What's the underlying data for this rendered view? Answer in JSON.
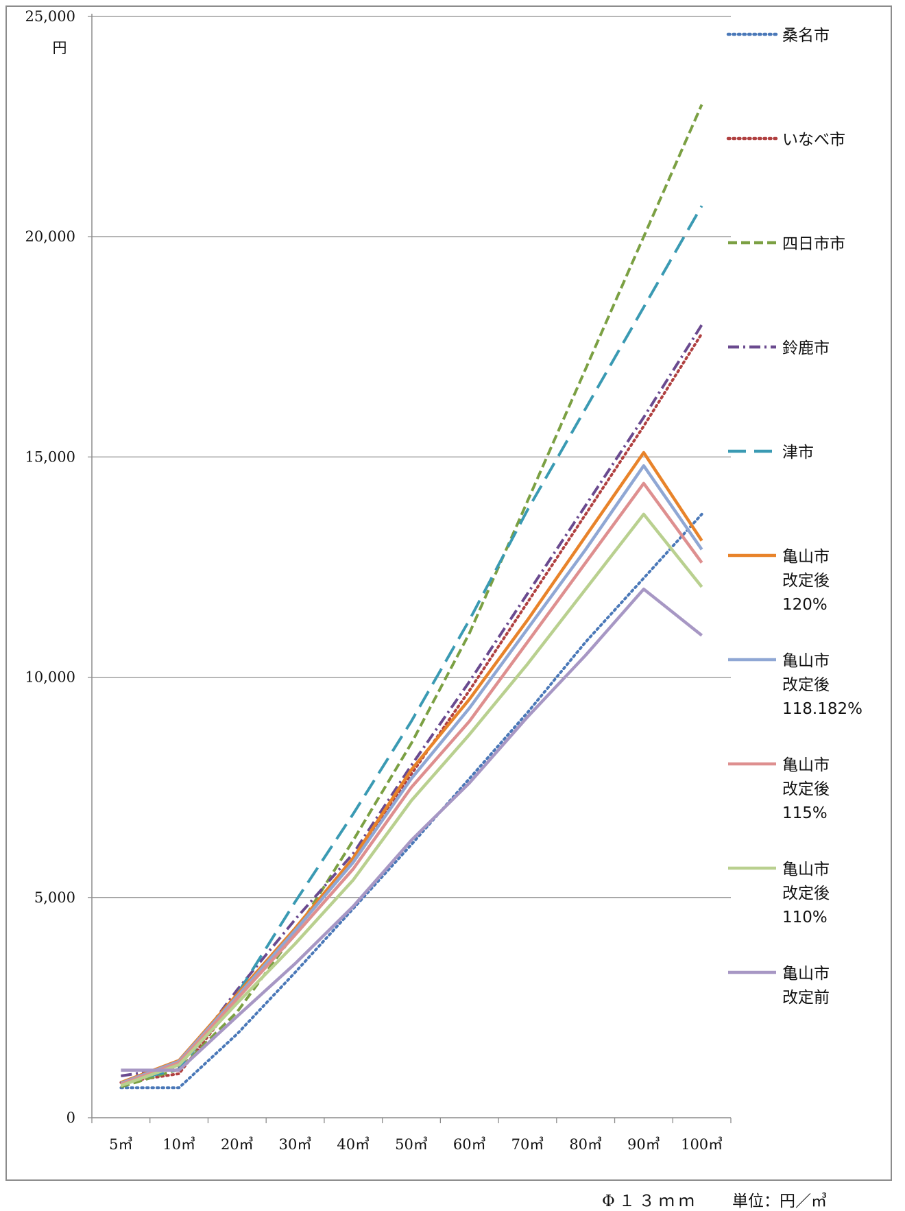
{
  "chart_data": {
    "type": "line",
    "title": "",
    "xlabel": "",
    "ylabel": "円",
    "ylim": [
      0,
      25000
    ],
    "y_ticks": [
      "0",
      "5,000",
      "10,000",
      "15,000",
      "20,000",
      "25,000"
    ],
    "y_tick_values": [
      0,
      5000,
      10000,
      15000,
      20000,
      25000
    ],
    "categories": [
      "5㎥",
      "10㎥",
      "20㎥",
      "30㎥",
      "40㎥",
      "50㎥",
      "60㎥",
      "70㎥",
      "80㎥",
      "90㎥",
      "100㎥"
    ],
    "x_tick_values": [
      5,
      10,
      20,
      30,
      40,
      50,
      60,
      70,
      80,
      90,
      100
    ],
    "grid": "horizontal",
    "legend_position": "right",
    "series": [
      {
        "name": "桑名市",
        "label_lines": [
          "桑名市"
        ],
        "color": "#4a78b8",
        "style": "dotted",
        "x": [
          5,
          10,
          20,
          30,
          40,
          50,
          60,
          70,
          80,
          90,
          100
        ],
        "values": [
          680,
          680,
          1900,
          3300,
          4750,
          6200,
          7700,
          9200,
          10800,
          12250,
          13700
        ]
      },
      {
        "name": "いなべ市",
        "label_lines": [
          "いなべ市"
        ],
        "color": "#b04040",
        "style": "dotted",
        "x": [
          5,
          10,
          20,
          30,
          40,
          50,
          60,
          70,
          80,
          90,
          100
        ],
        "values": [
          800,
          1000,
          2700,
          4300,
          5900,
          7800,
          9700,
          11700,
          13700,
          15700,
          17800
        ]
      },
      {
        "name": "四日市市",
        "label_lines": [
          "四日市市"
        ],
        "color": "#7ba043",
        "style": "dashed",
        "x": [
          5,
          10,
          20,
          30,
          40,
          50,
          60,
          70,
          80,
          90,
          100
        ],
        "values": [
          700,
          1100,
          2400,
          4200,
          6300,
          8500,
          11000,
          14000,
          17000,
          20000,
          23000
        ]
      },
      {
        "name": "鈴鹿市",
        "label_lines": [
          "鈴鹿市"
        ],
        "color": "#6a4a8f",
        "style": "dashdot",
        "x": [
          5,
          10,
          20,
          30,
          40,
          50,
          60,
          70,
          80,
          90,
          100
        ],
        "values": [
          950,
          1150,
          2900,
          4500,
          6000,
          8000,
          9900,
          11900,
          13900,
          15900,
          18000
        ]
      },
      {
        "name": "津市",
        "label_lines": [
          "津市"
        ],
        "color": "#3a9ab3",
        "style": "longdash",
        "x": [
          5,
          10,
          20,
          30,
          40,
          50,
          60,
          70,
          80,
          90,
          100
        ],
        "values": [
          800,
          1100,
          2800,
          4900,
          6900,
          9000,
          11300,
          13800,
          16100,
          18400,
          20700
        ]
      },
      {
        "name": "亀山市改定後120%",
        "label_lines": [
          "亀山市",
          "改定後",
          "120%"
        ],
        "color": "#e8832a",
        "style": "solid",
        "x": [
          5,
          10,
          20,
          30,
          40,
          50,
          60,
          70,
          80,
          90,
          100
        ],
        "values": [
          800,
          1300,
          2800,
          4300,
          5900,
          7900,
          9500,
          11300,
          13200,
          15100,
          13100
        ]
      },
      {
        "name": "亀山市改定後118.182%",
        "label_lines": [
          "亀山市",
          "改定後",
          "118.182%"
        ],
        "color": "#8fa7d4",
        "style": "solid",
        "x": [
          5,
          10,
          20,
          30,
          40,
          50,
          60,
          70,
          80,
          90,
          100
        ],
        "values": [
          780,
          1280,
          2750,
          4250,
          5800,
          7700,
          9300,
          11100,
          12900,
          14800,
          12900
        ]
      },
      {
        "name": "亀山市改定後115%",
        "label_lines": [
          "亀山市",
          "改定後",
          "115%"
        ],
        "color": "#de8f8f",
        "style": "solid",
        "x": [
          5,
          10,
          20,
          30,
          40,
          50,
          60,
          70,
          80,
          90,
          100
        ],
        "values": [
          760,
          1250,
          2700,
          4150,
          5650,
          7500,
          9000,
          10800,
          12600,
          14400,
          12600
        ]
      },
      {
        "name": "亀山市改定後110%",
        "label_lines": [
          "亀山市",
          "改定後",
          "110%"
        ],
        "color": "#b9d08f",
        "style": "solid",
        "x": [
          5,
          10,
          20,
          30,
          40,
          50,
          60,
          70,
          80,
          90,
          100
        ],
        "values": [
          730,
          1200,
          2600,
          3950,
          5400,
          7200,
          8700,
          10300,
          12000,
          13700,
          12050
        ]
      },
      {
        "name": "亀山市改定前",
        "label_lines": [
          "亀山市",
          "改定前"
        ],
        "color": "#a797c4",
        "style": "solid",
        "x": [
          5,
          10,
          20,
          30,
          40,
          50,
          60,
          70,
          80,
          90,
          100
        ],
        "values": [
          1080,
          1080,
          2300,
          3500,
          4800,
          6300,
          7600,
          9100,
          10500,
          12000,
          10950
        ]
      }
    ]
  },
  "footer": {
    "spec": "Φ１３ｍｍ",
    "unit": "単位：円／㎥"
  }
}
